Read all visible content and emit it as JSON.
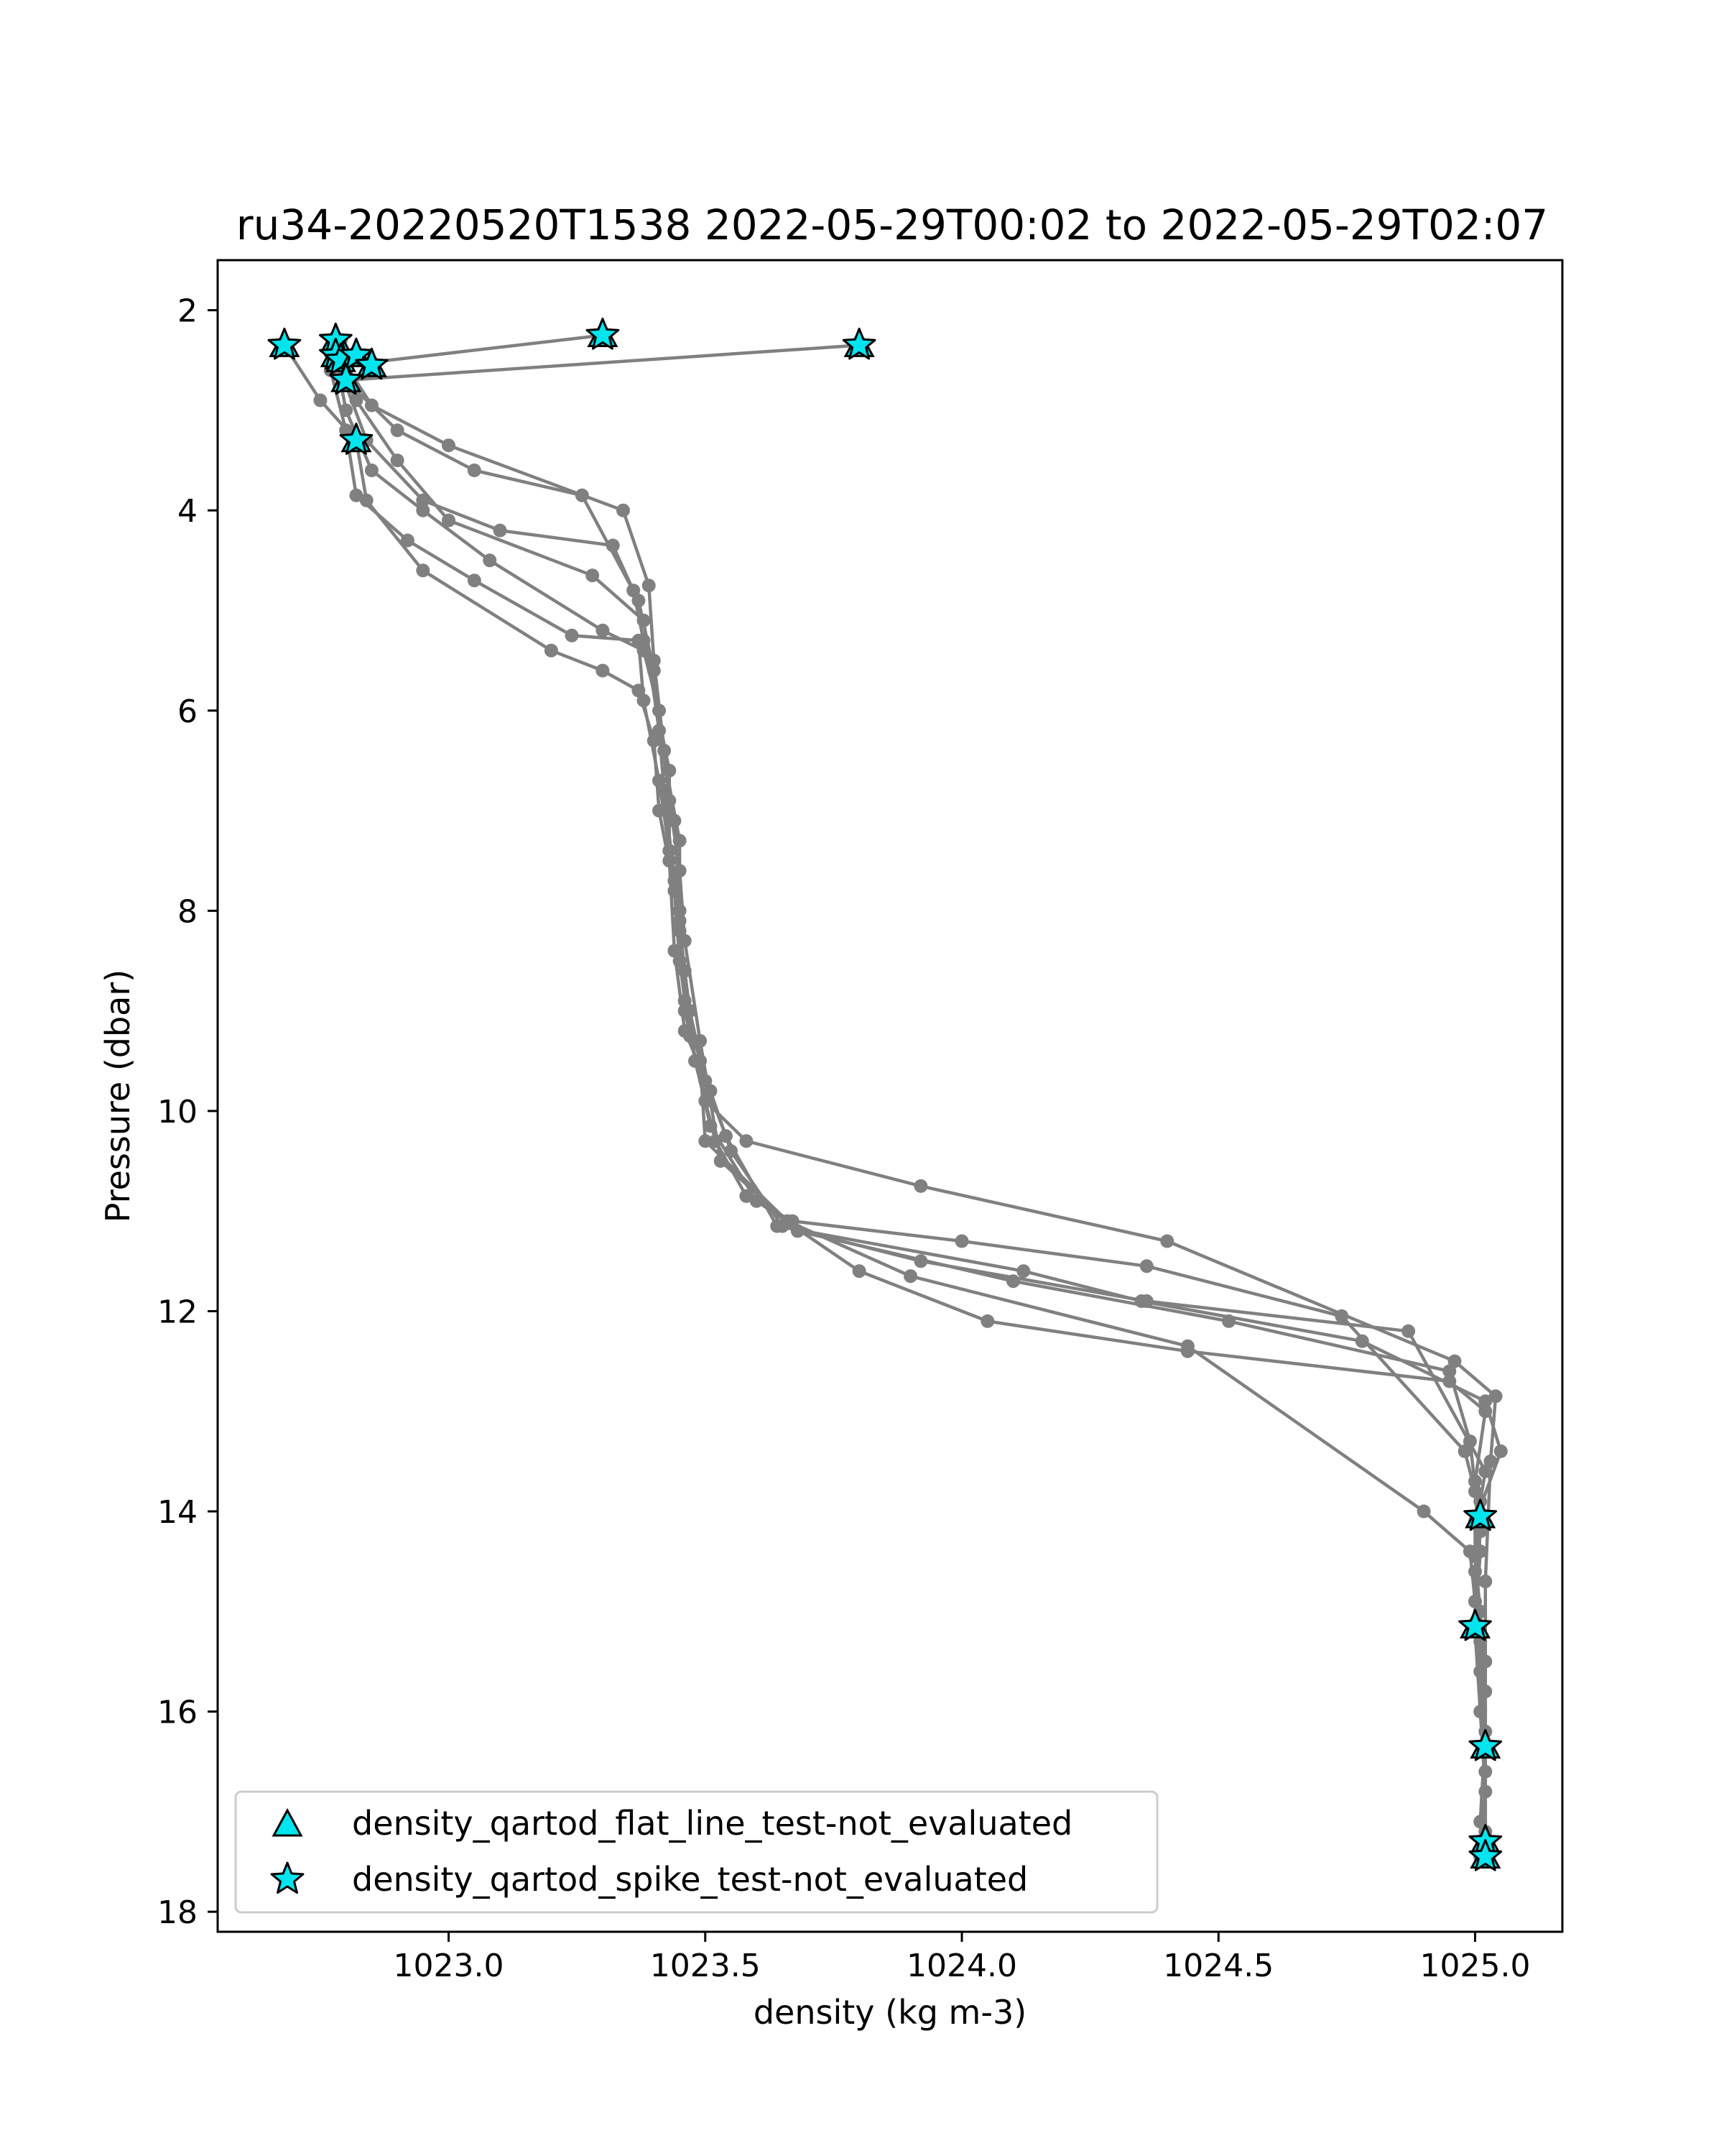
{
  "chart_data": {
    "type": "scatter",
    "title": "ru34-20220520T1538 2022-05-29T00:02 to 2022-05-29T02:07",
    "xlabel": "density (kg m-3)",
    "ylabel": "Pressure (dbar)",
    "xlim": [
      1022.55,
      1025.17
    ],
    "ylim": [
      18.2,
      1.5
    ],
    "y_inverted": true,
    "grid": false,
    "legend_position": "lower-left",
    "x_ticks": [
      {
        "value": 1023.0,
        "label": "1023.0"
      },
      {
        "value": 1023.5,
        "label": "1023.5"
      },
      {
        "value": 1024.0,
        "label": "1024.0"
      },
      {
        "value": 1024.5,
        "label": "1024.5"
      },
      {
        "value": 1025.0,
        "label": "1025.0"
      }
    ],
    "y_ticks": [
      {
        "value": 2,
        "label": "2"
      },
      {
        "value": 4,
        "label": "4"
      },
      {
        "value": 6,
        "label": "6"
      },
      {
        "value": 8,
        "label": "8"
      },
      {
        "value": 10,
        "label": "10"
      },
      {
        "value": 12,
        "label": "12"
      },
      {
        "value": 14,
        "label": "14"
      },
      {
        "value": 16,
        "label": "16"
      },
      {
        "value": 18,
        "label": "18"
      }
    ],
    "colors": {
      "profile": "#808080",
      "flag_fill": "#00e5ee",
      "flag_edge": "#000000",
      "axes": "#000000",
      "legend_edge": "#cccccc"
    },
    "profiles": [
      {
        "points": [
          [
            1025.01,
            17.45
          ],
          [
            1025.02,
            16.8
          ],
          [
            1025.01,
            16.0
          ],
          [
            1025.0,
            15.2
          ],
          [
            1025.01,
            14.4
          ],
          [
            1025.0,
            13.8
          ],
          [
            1024.98,
            13.4
          ],
          [
            1024.74,
            12.05
          ],
          [
            1024.36,
            11.55
          ],
          [
            1024.0,
            11.3
          ],
          [
            1023.67,
            11.1
          ],
          [
            1023.58,
            10.85
          ],
          [
            1023.52,
            10.3
          ],
          [
            1023.48,
            9.5
          ],
          [
            1023.46,
            8.6
          ],
          [
            1023.44,
            7.7
          ],
          [
            1023.42,
            6.8
          ],
          [
            1023.4,
            5.6
          ],
          [
            1023.37,
            4.9
          ],
          [
            1023.26,
            3.85
          ],
          [
            1023.05,
            3.6
          ],
          [
            1022.9,
            3.2
          ],
          [
            1022.8,
            2.7
          ],
          [
            1023.8,
            2.35
          ]
        ]
      },
      {
        "points": [
          [
            1025.02,
            17.3
          ],
          [
            1025.02,
            16.4
          ],
          [
            1025.02,
            15.5
          ],
          [
            1025.02,
            14.7
          ],
          [
            1025.03,
            13.5
          ],
          [
            1025.04,
            12.85
          ],
          [
            1024.96,
            12.5
          ],
          [
            1024.4,
            11.3
          ],
          [
            1023.92,
            10.75
          ],
          [
            1023.58,
            10.3
          ],
          [
            1023.5,
            9.9
          ],
          [
            1023.46,
            9.0
          ],
          [
            1023.45,
            8.0
          ],
          [
            1023.44,
            7.1
          ],
          [
            1023.42,
            6.4
          ],
          [
            1023.4,
            5.5
          ],
          [
            1023.39,
            4.75
          ],
          [
            1023.34,
            4.0
          ],
          [
            1023.0,
            3.35
          ],
          [
            1022.85,
            2.95
          ],
          [
            1022.8,
            2.55
          ],
          [
            1023.3,
            2.25
          ]
        ]
      },
      {
        "points": [
          [
            1025.01,
            17.1
          ],
          [
            1025.02,
            16.2
          ],
          [
            1025.01,
            15.3
          ],
          [
            1025.0,
            14.6
          ],
          [
            1025.01,
            13.9
          ],
          [
            1025.02,
            13.6
          ],
          [
            1024.87,
            12.2
          ],
          [
            1024.36,
            11.9
          ],
          [
            1023.92,
            11.5
          ],
          [
            1023.65,
            11.15
          ],
          [
            1023.55,
            10.4
          ],
          [
            1023.51,
            9.8
          ],
          [
            1023.46,
            9.2
          ],
          [
            1023.44,
            8.4
          ],
          [
            1023.43,
            7.5
          ],
          [
            1023.43,
            6.6
          ],
          [
            1023.38,
            5.3
          ],
          [
            1023.36,
            4.8
          ],
          [
            1023.32,
            4.35
          ],
          [
            1023.1,
            4.2
          ],
          [
            1022.95,
            3.9
          ],
          [
            1022.84,
            3.3
          ],
          [
            1022.8,
            2.75
          ],
          [
            1022.85,
            2.55
          ]
        ]
      },
      {
        "points": [
          [
            1025.02,
            16.35
          ],
          [
            1025.02,
            15.8
          ],
          [
            1025.01,
            15.0
          ],
          [
            1025.0,
            14.45
          ],
          [
            1025.0,
            14.1
          ],
          [
            1025.05,
            13.4
          ],
          [
            1025.02,
            12.9
          ],
          [
            1024.78,
            12.3
          ],
          [
            1024.35,
            11.9
          ],
          [
            1024.12,
            11.6
          ],
          [
            1023.64,
            11.15
          ],
          [
            1023.54,
            10.25
          ],
          [
            1023.5,
            9.7
          ],
          [
            1023.47,
            9.0
          ],
          [
            1023.45,
            8.2
          ],
          [
            1023.45,
            7.3
          ],
          [
            1023.41,
            6.2
          ],
          [
            1023.38,
            5.1
          ],
          [
            1023.28,
            4.65
          ],
          [
            1023.0,
            4.1
          ],
          [
            1022.9,
            3.5
          ],
          [
            1022.82,
            2.9
          ],
          [
            1022.78,
            2.5
          ]
        ]
      },
      {
        "points": [
          [
            1025.02,
            17.2
          ],
          [
            1025.02,
            16.6
          ],
          [
            1025.01,
            15.6
          ],
          [
            1025.0,
            14.9
          ],
          [
            1025.01,
            14.2
          ],
          [
            1024.99,
            13.3
          ],
          [
            1024.95,
            12.6
          ],
          [
            1024.52,
            12.1
          ],
          [
            1024.1,
            11.7
          ],
          [
            1023.68,
            11.2
          ],
          [
            1023.53,
            10.5
          ],
          [
            1023.49,
            9.3
          ],
          [
            1023.46,
            8.3
          ],
          [
            1023.45,
            7.6
          ],
          [
            1023.43,
            6.9
          ],
          [
            1023.41,
            6.0
          ],
          [
            1023.38,
            5.4
          ],
          [
            1023.3,
            5.2
          ],
          [
            1023.08,
            4.5
          ],
          [
            1022.95,
            4.0
          ],
          [
            1022.85,
            3.6
          ],
          [
            1022.8,
            3.0
          ],
          [
            1022.78,
            2.45
          ]
        ]
      },
      {
        "points": [
          [
            1025.01,
            14.05
          ],
          [
            1025.0,
            13.7
          ],
          [
            1025.02,
            13.0
          ],
          [
            1024.95,
            12.7
          ],
          [
            1024.44,
            12.4
          ],
          [
            1024.05,
            12.1
          ],
          [
            1023.8,
            11.6
          ],
          [
            1023.6,
            10.9
          ],
          [
            1023.51,
            10.15
          ],
          [
            1023.47,
            9.25
          ],
          [
            1023.45,
            8.5
          ],
          [
            1023.44,
            7.8
          ],
          [
            1023.41,
            7.0
          ],
          [
            1023.4,
            6.3
          ],
          [
            1023.37,
            5.8
          ],
          [
            1023.3,
            5.6
          ],
          [
            1023.2,
            5.4
          ],
          [
            1022.95,
            4.6
          ],
          [
            1022.84,
            3.9
          ],
          [
            1022.82,
            3.3
          ],
          [
            1022.75,
            2.9
          ],
          [
            1022.68,
            2.35
          ]
        ]
      },
      {
        "points": [
          [
            1025.0,
            15.15
          ],
          [
            1025.0,
            14.9
          ],
          [
            1024.99,
            14.4
          ],
          [
            1024.9,
            14.0
          ],
          [
            1024.44,
            12.35
          ],
          [
            1023.9,
            11.65
          ],
          [
            1023.66,
            11.1
          ],
          [
            1023.5,
            10.3
          ],
          [
            1023.49,
            9.5
          ],
          [
            1023.46,
            8.9
          ],
          [
            1023.45,
            8.1
          ],
          [
            1023.43,
            7.4
          ],
          [
            1023.41,
            6.7
          ],
          [
            1023.38,
            5.9
          ],
          [
            1023.37,
            5.3
          ],
          [
            1023.24,
            5.25
          ],
          [
            1023.05,
            4.7
          ],
          [
            1022.92,
            4.3
          ],
          [
            1022.82,
            3.85
          ],
          [
            1022.8,
            3.2
          ],
          [
            1022.77,
            2.6
          ],
          [
            1022.79,
            2.3
          ]
        ]
      }
    ],
    "flagged_points": [
      [
        1022.68,
        2.35
      ],
      [
        1022.78,
        2.3
      ],
      [
        1022.78,
        2.45
      ],
      [
        1022.79,
        2.5
      ],
      [
        1022.82,
        2.45
      ],
      [
        1022.85,
        2.55
      ],
      [
        1022.8,
        2.7
      ],
      [
        1022.82,
        3.3
      ],
      [
        1023.3,
        2.25
      ],
      [
        1023.8,
        2.35
      ],
      [
        1025.01,
        14.05
      ],
      [
        1025.0,
        15.15
      ],
      [
        1025.02,
        16.35
      ],
      [
        1025.02,
        17.3
      ],
      [
        1025.02,
        17.45
      ]
    ],
    "legend": [
      {
        "marker": "triangle",
        "label": "density_qartod_flat_line_test-not_evaluated"
      },
      {
        "marker": "star",
        "label": "density_qartod_spike_test-not_evaluated"
      }
    ]
  }
}
